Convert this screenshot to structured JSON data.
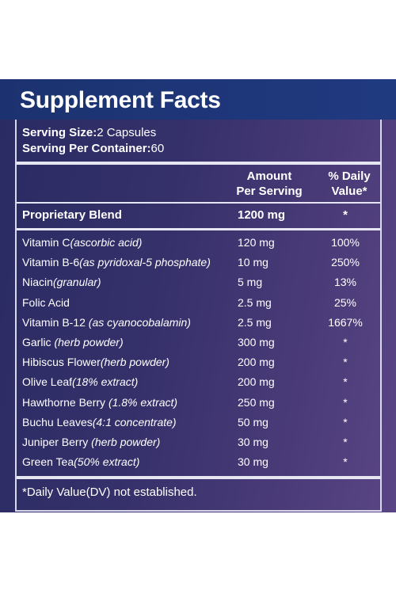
{
  "title": "Supplement Facts",
  "serving": {
    "size_label": "Serving Size:",
    "size_value": "2 Capsules",
    "per_container_label": "Serving Per Container:",
    "per_container_value": "60"
  },
  "columns": {
    "amount_line1": "Amount",
    "amount_line2": "Per Serving",
    "dv_line1": "% Daily",
    "dv_line2": "Value*"
  },
  "blend": {
    "name": "Proprietary Blend",
    "amount": "1200 mg",
    "dv": "*"
  },
  "ingredients": [
    {
      "name": "Vitamin C",
      "note": "(ascorbic acid)",
      "amount": "120 mg",
      "dv": "100%"
    },
    {
      "name": "Vitamin B-6",
      "note": "(as pyridoxal-5 phosphate)",
      "amount": "10 mg",
      "dv": "250%"
    },
    {
      "name": "Niacin",
      "note": "(granular)",
      "amount": "5 mg",
      "dv": "13%"
    },
    {
      "name": "Folic Acid",
      "note": "",
      "amount": "2.5 mg",
      "dv": "25%"
    },
    {
      "name": "Vitamin B-12 ",
      "note": "(as cyanocobalamin)",
      "amount": "2.5 mg",
      "dv": "1667%"
    },
    {
      "name": "Garlic ",
      "note": "(herb powder)",
      "amount": "300 mg",
      "dv": "*"
    },
    {
      "name": "Hibiscus Flower",
      "note": "(herb powder)",
      "amount": "200 mg",
      "dv": "*"
    },
    {
      "name": "Olive Leaf",
      "note": "(18% extract)",
      "amount": "200 mg",
      "dv": "*"
    },
    {
      "name": "Hawthorne Berry ",
      "note": "(1.8% extract)",
      "amount": "250 mg",
      "dv": "*"
    },
    {
      "name": "Buchu Leaves",
      "note": "(4:1 concentrate)",
      "amount": "50 mg",
      "dv": "*"
    },
    {
      "name": "Juniper Berry ",
      "note": "(herb powder)",
      "amount": "30 mg",
      "dv": "*"
    },
    {
      "name": "Green Tea",
      "note": "(50% extract)",
      "amount": "30 mg",
      "dv": "*"
    }
  ],
  "footnote": "*Daily Value(DV) not established."
}
